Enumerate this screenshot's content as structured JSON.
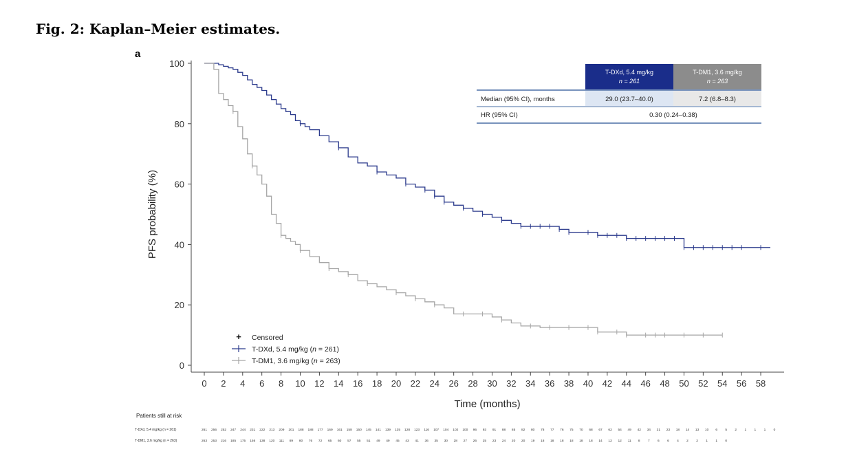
{
  "figure": {
    "title": "Fig. 2: Kaplan–Meier estimates.",
    "panel_label": "a"
  },
  "colors": {
    "tdxd": "#2b3a8c",
    "tdm1": "#a6a6a6",
    "tdxd_header": "#1a2d8a",
    "tdm1_header": "#8c8c8c",
    "axis": "#444444"
  },
  "chart_data": {
    "type": "line",
    "title": "",
    "xlabel": "Time (months)",
    "ylabel": "PFS probability (%)",
    "xlim": [
      0,
      59
    ],
    "ylim": [
      0,
      100
    ],
    "x_ticks": [
      0,
      2,
      4,
      6,
      8,
      10,
      12,
      14,
      16,
      18,
      20,
      22,
      24,
      26,
      28,
      30,
      32,
      34,
      36,
      38,
      40,
      42,
      44,
      46,
      48,
      50,
      52,
      54,
      56,
      58
    ],
    "y_ticks": [
      0,
      20,
      40,
      60,
      80,
      100
    ],
    "series": [
      {
        "name": "T-DXd, 5.4 mg/kg (n = 261)",
        "step_points": [
          [
            0,
            100
          ],
          [
            1,
            100
          ],
          [
            1.5,
            99.5
          ],
          [
            2,
            99
          ],
          [
            2.5,
            98.5
          ],
          [
            3,
            98
          ],
          [
            3.5,
            97
          ],
          [
            4,
            96
          ],
          [
            4.5,
            94.5
          ],
          [
            5,
            93
          ],
          [
            5.5,
            92
          ],
          [
            6,
            91
          ],
          [
            6.5,
            89.5
          ],
          [
            7,
            88
          ],
          [
            7.5,
            86.5
          ],
          [
            8,
            85
          ],
          [
            8.5,
            84
          ],
          [
            9,
            83
          ],
          [
            9.5,
            81
          ],
          [
            10,
            80
          ],
          [
            10.5,
            79
          ],
          [
            11,
            78
          ],
          [
            12,
            76
          ],
          [
            13,
            74
          ],
          [
            14,
            72
          ],
          [
            15,
            69
          ],
          [
            16,
            67
          ],
          [
            17,
            66
          ],
          [
            18,
            64
          ],
          [
            19,
            63
          ],
          [
            20,
            62
          ],
          [
            21,
            60
          ],
          [
            22,
            59
          ],
          [
            23,
            58
          ],
          [
            24,
            56
          ],
          [
            25,
            54
          ],
          [
            26,
            53
          ],
          [
            27,
            52
          ],
          [
            28,
            51
          ],
          [
            29,
            50
          ],
          [
            30,
            49
          ],
          [
            31,
            48
          ],
          [
            32,
            47
          ],
          [
            33,
            46
          ],
          [
            34,
            46
          ],
          [
            35,
            46
          ],
          [
            36,
            46
          ],
          [
            37,
            45
          ],
          [
            38,
            44
          ],
          [
            39,
            44
          ],
          [
            40,
            44
          ],
          [
            41,
            43
          ],
          [
            42,
            43
          ],
          [
            43,
            43
          ],
          [
            44,
            42
          ],
          [
            45,
            42
          ],
          [
            46,
            42
          ],
          [
            47,
            42
          ],
          [
            48,
            42
          ],
          [
            49,
            42
          ],
          [
            50,
            39
          ],
          [
            51,
            39
          ],
          [
            52,
            39
          ],
          [
            53,
            39
          ],
          [
            54,
            39
          ],
          [
            55,
            39
          ],
          [
            56,
            39
          ],
          [
            57,
            39
          ],
          [
            58,
            39
          ],
          [
            59,
            39
          ]
        ],
        "censor_times": [
          10,
          14,
          18,
          21,
          23,
          24,
          25,
          27,
          29,
          31,
          33,
          34,
          35,
          36,
          37,
          38,
          40,
          41,
          42,
          43,
          44,
          45,
          46,
          47,
          48,
          49,
          50,
          51,
          52,
          53,
          54,
          55,
          56,
          58
        ]
      },
      {
        "name": "T-DM1, 3.6 mg/kg (n = 263)",
        "step_points": [
          [
            0,
            100
          ],
          [
            1,
            98
          ],
          [
            1.5,
            90
          ],
          [
            2,
            88
          ],
          [
            2.5,
            86
          ],
          [
            3,
            84
          ],
          [
            3.5,
            79
          ],
          [
            4,
            75
          ],
          [
            4.5,
            70
          ],
          [
            5,
            66
          ],
          [
            5.5,
            63
          ],
          [
            6,
            60
          ],
          [
            6.5,
            56
          ],
          [
            7,
            50
          ],
          [
            7.5,
            47
          ],
          [
            8,
            43
          ],
          [
            8.5,
            42
          ],
          [
            9,
            41
          ],
          [
            9.5,
            40
          ],
          [
            10,
            38
          ],
          [
            11,
            36
          ],
          [
            12,
            34
          ],
          [
            13,
            32
          ],
          [
            14,
            31
          ],
          [
            15,
            30
          ],
          [
            16,
            28
          ],
          [
            17,
            27
          ],
          [
            18,
            26
          ],
          [
            19,
            25
          ],
          [
            20,
            24
          ],
          [
            21,
            23
          ],
          [
            22,
            22
          ],
          [
            23,
            21
          ],
          [
            24,
            20
          ],
          [
            25,
            19
          ],
          [
            26,
            17
          ],
          [
            27,
            17
          ],
          [
            28,
            17
          ],
          [
            29,
            17
          ],
          [
            30,
            16
          ],
          [
            31,
            15
          ],
          [
            32,
            14
          ],
          [
            33,
            13
          ],
          [
            34,
            13
          ],
          [
            35,
            12.5
          ],
          [
            36,
            12.5
          ],
          [
            37,
            12.5
          ],
          [
            38,
            12.5
          ],
          [
            39,
            12.5
          ],
          [
            40,
            12.5
          ],
          [
            41,
            11
          ],
          [
            42,
            11
          ],
          [
            43,
            11
          ],
          [
            44,
            10
          ],
          [
            45,
            10
          ],
          [
            46,
            10
          ],
          [
            47,
            10
          ],
          [
            48,
            10
          ],
          [
            49,
            10
          ],
          [
            50,
            10
          ],
          [
            51,
            10
          ],
          [
            52,
            10
          ],
          [
            53,
            10
          ],
          [
            54,
            10
          ]
        ],
        "censor_times": [
          3,
          5,
          8,
          10,
          13,
          15,
          17,
          20,
          22,
          24,
          27,
          29,
          31,
          34,
          36,
          38,
          40,
          41,
          43,
          44,
          46,
          47,
          48,
          50,
          52,
          54
        ]
      }
    ],
    "legend": [
      {
        "symbol": "+",
        "label": "Censored"
      },
      {
        "symbol": "line",
        "label_pre": "T-DXd, 5.4 mg/kg (",
        "label_n": "n",
        "label_post": " = 261)"
      },
      {
        "symbol": "line",
        "label_pre": "T-DM1, 3.6 mg/kg (",
        "label_n": "n",
        "label_post": " = 263)"
      }
    ],
    "legend_placement": "bottom-left"
  },
  "summary_table": {
    "headers": [
      {
        "line1": "T-DXd, 5.4 mg/kg",
        "line2": "n = 261"
      },
      {
        "line1": "T-DM1, 3.6 mg/kg",
        "line2": "n = 263"
      }
    ],
    "rows": [
      {
        "label": "Median (95% CI), months",
        "tdxd": "29.0 (23.7–40.0)",
        "tdm1": "7.2 (6.8–8.3)"
      },
      {
        "label": "HR (95% CI)",
        "combined": "0.30 (0.24–0.38)"
      }
    ]
  },
  "risk_table": {
    "title": "Patients still at risk",
    "rows": [
      {
        "label": "T-DXd, 5.4 mg/kg (n = 261)",
        "values": [
          261,
          256,
          252,
          247,
          244,
          231,
          222,
          213,
          209,
          201,
          188,
          188,
          177,
          169,
          161,
          158,
          150,
          145,
          141,
          139,
          135,
          128,
          123,
          116,
          107,
          104,
          102,
          100,
          96,
          93,
          91,
          88,
          85,
          82,
          80,
          78,
          77,
          76,
          75,
          70,
          68,
          67,
          62,
          54,
          49,
          42,
          34,
          31,
          23,
          18,
          14,
          13,
          10,
          6,
          5,
          2,
          1,
          1,
          1,
          0
        ]
      },
      {
        "label": "T-DM1, 3.6 mg/kg (n = 263)",
        "values": [
          263,
          253,
          216,
          185,
          175,
          156,
          138,
          120,
          111,
          89,
          80,
          76,
          72,
          65,
          60,
          57,
          55,
          51,
          49,
          49,
          45,
          43,
          41,
          36,
          35,
          30,
          28,
          27,
          26,
          25,
          23,
          24,
          20,
          20,
          19,
          18,
          18,
          18,
          18,
          18,
          18,
          14,
          12,
          12,
          11,
          8,
          7,
          6,
          6,
          4,
          2,
          2,
          1,
          1,
          0
        ]
      }
    ]
  }
}
